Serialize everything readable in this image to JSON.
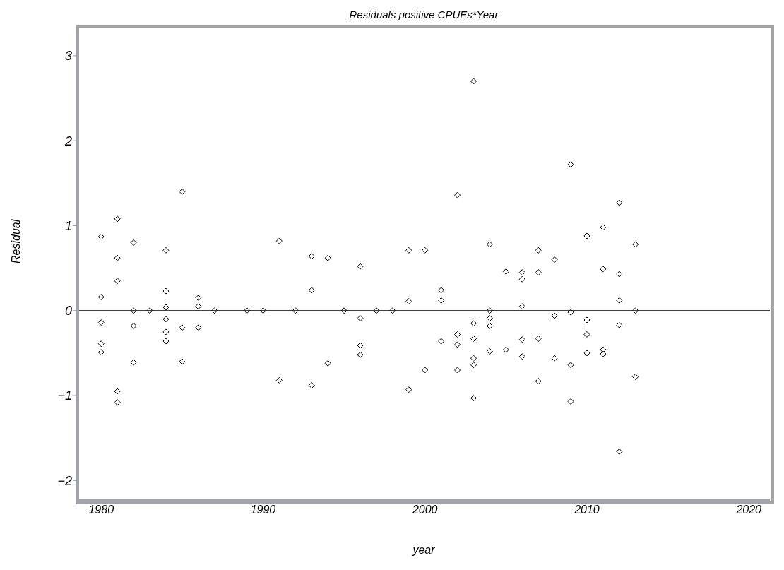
{
  "chart_data": {
    "type": "scatter",
    "title": "Residuals positive CPUEs*Year",
    "xlabel": "year",
    "ylabel": "Residual",
    "marker": "diamond",
    "grid": false,
    "xlim": [
      1978.55,
      2021.3
    ],
    "xticks": [
      1980,
      1990,
      2000,
      2010,
      2020
    ],
    "ylim": [
      -2.23,
      3.34
    ],
    "yticks": [
      {
        "value": -2,
        "label": "−2"
      },
      {
        "value": -1,
        "label": "−1"
      },
      0,
      1,
      2,
      3
    ],
    "ref_lines": [
      {
        "axis": "y",
        "value": 0,
        "color": "#000000"
      }
    ],
    "series": [
      {
        "color": "#000000",
        "x": [
          1980,
          1980,
          1980,
          1980,
          1980,
          1981,
          1981,
          1981,
          1981,
          1981,
          1982,
          1982,
          1982,
          1982,
          1983,
          1984,
          1984,
          1984,
          1984,
          1984,
          1984,
          1985,
          1985,
          1985,
          1986,
          1986,
          1986,
          1987,
          1989,
          1990,
          1991,
          1991,
          1992,
          1993,
          1993,
          1993,
          1994,
          1994,
          1995,
          1996,
          1996,
          1996,
          1996,
          1997,
          1998,
          1999,
          1999,
          1999,
          2000,
          2000,
          2001,
          2001,
          2001,
          2002,
          2002,
          2002,
          2002,
          2003,
          2003,
          2003,
          2003,
          2003,
          2003,
          2004,
          2004,
          2004,
          2004,
          2004,
          2005,
          2005,
          2006,
          2006,
          2006,
          2006,
          2006,
          2007,
          2007,
          2007,
          2007,
          2008,
          2008,
          2008,
          2009,
          2009,
          2009,
          2009,
          2010,
          2010,
          2010,
          2010,
          2011,
          2011,
          2011,
          2011,
          2012,
          2012,
          2012,
          2012,
          2012,
          2013,
          2013,
          2013
        ],
        "values": [
          0.87,
          0.16,
          -0.14,
          -0.39,
          -0.49,
          1.08,
          0.62,
          0.35,
          -0.95,
          -1.08,
          0.8,
          0,
          -0.18,
          -0.61,
          0,
          0.71,
          0.23,
          0.04,
          -0.1,
          -0.25,
          -0.36,
          1.4,
          -0.2,
          -0.6,
          0.15,
          0.05,
          -0.2,
          0,
          0,
          0,
          0.82,
          -0.82,
          0,
          0.64,
          0.24,
          -0.88,
          0.62,
          -0.62,
          0,
          0.52,
          -0.09,
          -0.41,
          -0.52,
          0,
          0,
          0.71,
          0.11,
          -0.93,
          0.71,
          -0.7,
          0.24,
          0.12,
          -0.36,
          1.36,
          -0.28,
          -0.4,
          -0.7,
          2.7,
          -0.15,
          -0.33,
          -0.56,
          -0.64,
          -1.03,
          0.78,
          0,
          -0.09,
          -0.18,
          -0.48,
          0.46,
          -0.46,
          0.45,
          0.37,
          0.05,
          -0.34,
          -0.54,
          0.71,
          0.45,
          -0.33,
          -0.83,
          0.6,
          -0.06,
          -0.56,
          1.72,
          -0.02,
          -0.64,
          -1.07,
          0.88,
          -0.11,
          -0.28,
          -0.5,
          0.98,
          0.49,
          -0.46,
          -0.51,
          1.27,
          0.43,
          0.12,
          -0.17,
          -1.66,
          0.78,
          0,
          -0.78
        ]
      }
    ]
  }
}
